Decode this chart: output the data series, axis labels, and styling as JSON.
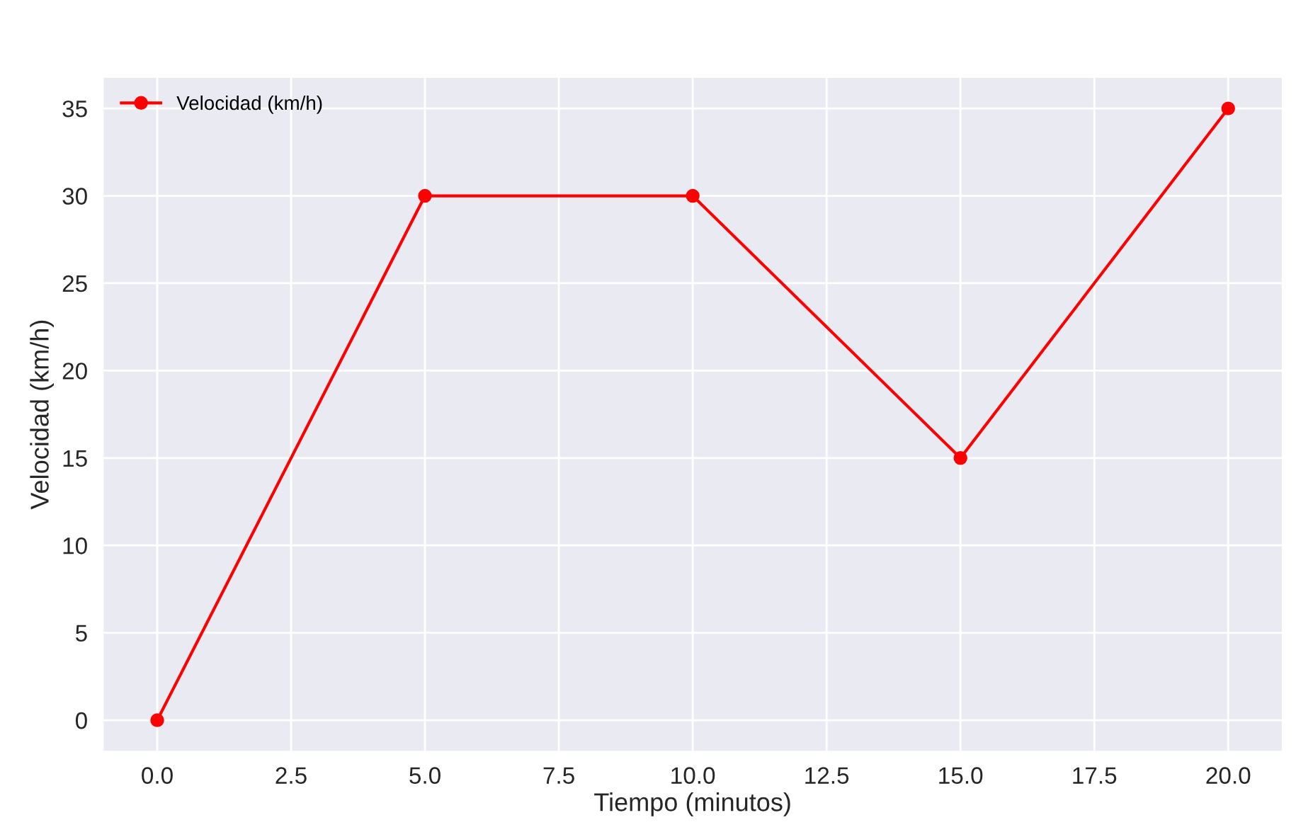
{
  "chart_data": {
    "type": "line",
    "xlabel": "Tiempo (minutos)",
    "ylabel": "Velocidad (km/h)",
    "x": [
      0,
      5,
      10,
      15,
      20
    ],
    "series": [
      {
        "name": "Velocidad (km/h)",
        "color": "#ff0000",
        "values": [
          0,
          30,
          30,
          15,
          35
        ]
      }
    ],
    "xlim": [
      -1,
      21
    ],
    "xticks": [
      {
        "value": 0,
        "label": "0.0"
      },
      {
        "value": 2.5,
        "label": "2.5"
      },
      {
        "value": 5,
        "label": "5.0"
      },
      {
        "value": 7.5,
        "label": "7.5"
      },
      {
        "value": 10,
        "label": "10.0"
      },
      {
        "value": 12.5,
        "label": "12.5"
      },
      {
        "value": 15,
        "label": "15.0"
      },
      {
        "value": 17.5,
        "label": "17.5"
      },
      {
        "value": 20,
        "label": "20.0"
      }
    ],
    "ylim": [
      -1.75,
      36.75
    ],
    "yticks": [
      0,
      5,
      10,
      15,
      20,
      25,
      30,
      35
    ],
    "grid": true,
    "legend": "top left",
    "marker": "circle",
    "line_style": "solid"
  }
}
